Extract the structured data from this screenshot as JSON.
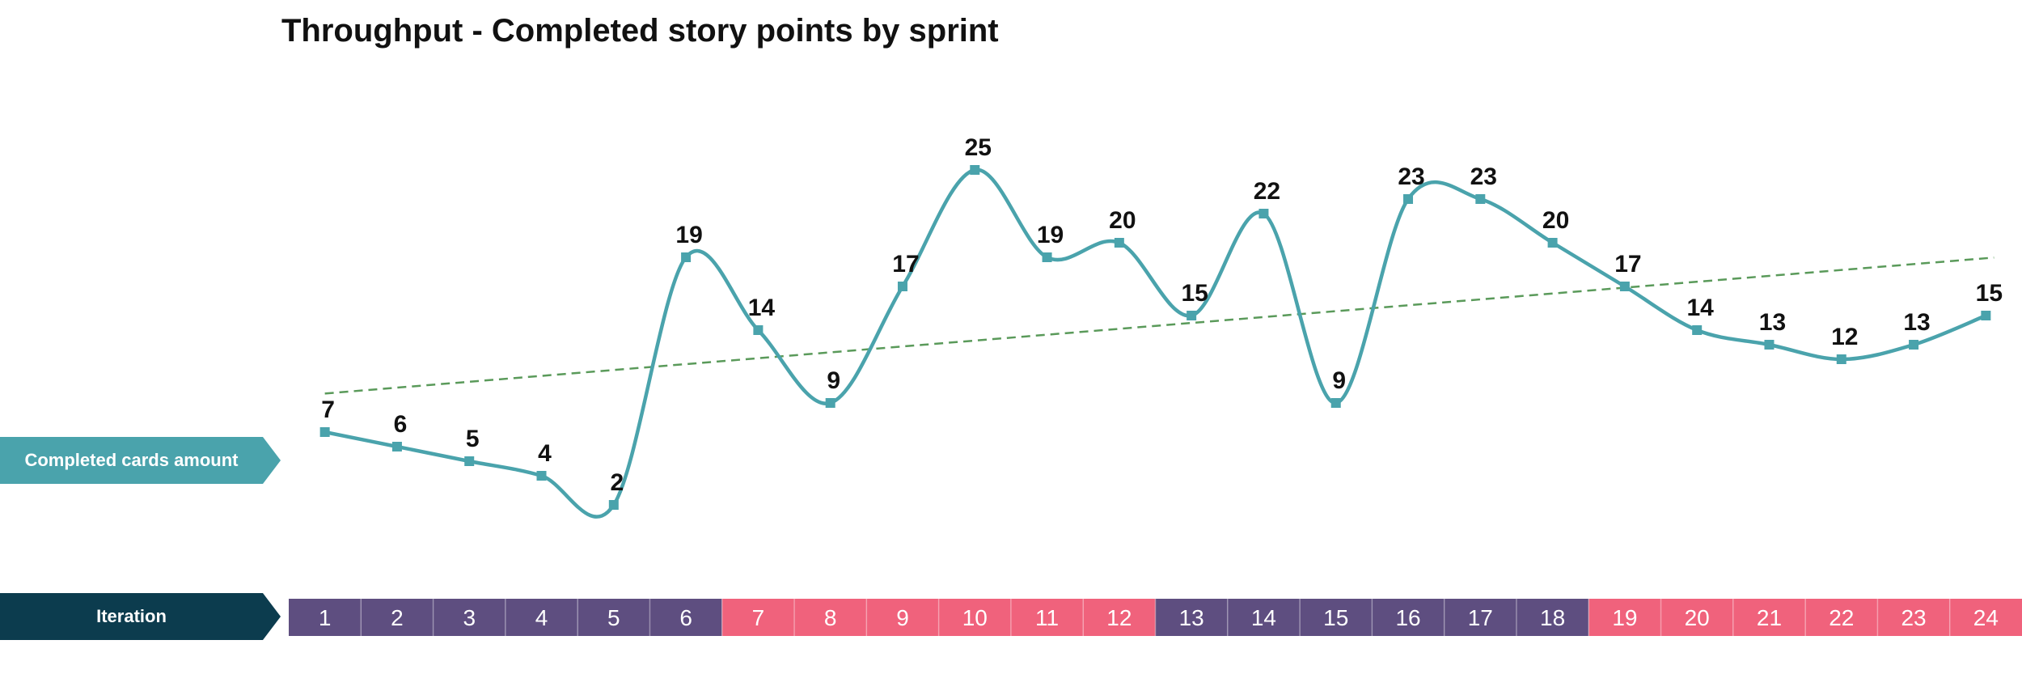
{
  "title": "Throughput - Completed story points by sprint",
  "labels": {
    "series_row": "Completed cards amount",
    "iteration_row": "Iteration"
  },
  "colors": {
    "line": "#4aa3ac",
    "trend": "#5a9a5a",
    "iteration_purple": "#5e4e80",
    "iteration_pink": "#f0627c",
    "series_label_bg": "#4aa3ac",
    "iteration_label_bg": "#0c3c4e"
  },
  "chart_data": {
    "type": "line",
    "title": "Throughput - Completed story points by sprint",
    "x_label": "Iteration",
    "categories": [
      "1",
      "2",
      "3",
      "4",
      "5",
      "6",
      "7",
      "8",
      "9",
      "10",
      "11",
      "12",
      "13",
      "14",
      "15",
      "16",
      "17",
      "18",
      "19",
      "20",
      "21",
      "22",
      "23",
      "24"
    ],
    "series": [
      {
        "name": "Completed cards amount",
        "values": [
          7,
          6,
          5,
          4,
          2,
          19,
          14,
          9,
          17,
          25,
          19,
          20,
          15,
          22,
          9,
          23,
          23,
          20,
          17,
          14,
          13,
          12,
          13,
          15
        ],
        "data_labels": true,
        "smooth": true
      }
    ],
    "trendline": {
      "type": "linear",
      "style": "dashed"
    },
    "iteration_band_colors": [
      "purple",
      "purple",
      "purple",
      "purple",
      "purple",
      "purple",
      "pink",
      "pink",
      "pink",
      "pink",
      "pink",
      "pink",
      "purple",
      "purple",
      "purple",
      "purple",
      "purple",
      "purple",
      "pink",
      "pink",
      "pink",
      "pink",
      "pink",
      "pink"
    ],
    "y_axis_visible": false,
    "grid": false
  }
}
